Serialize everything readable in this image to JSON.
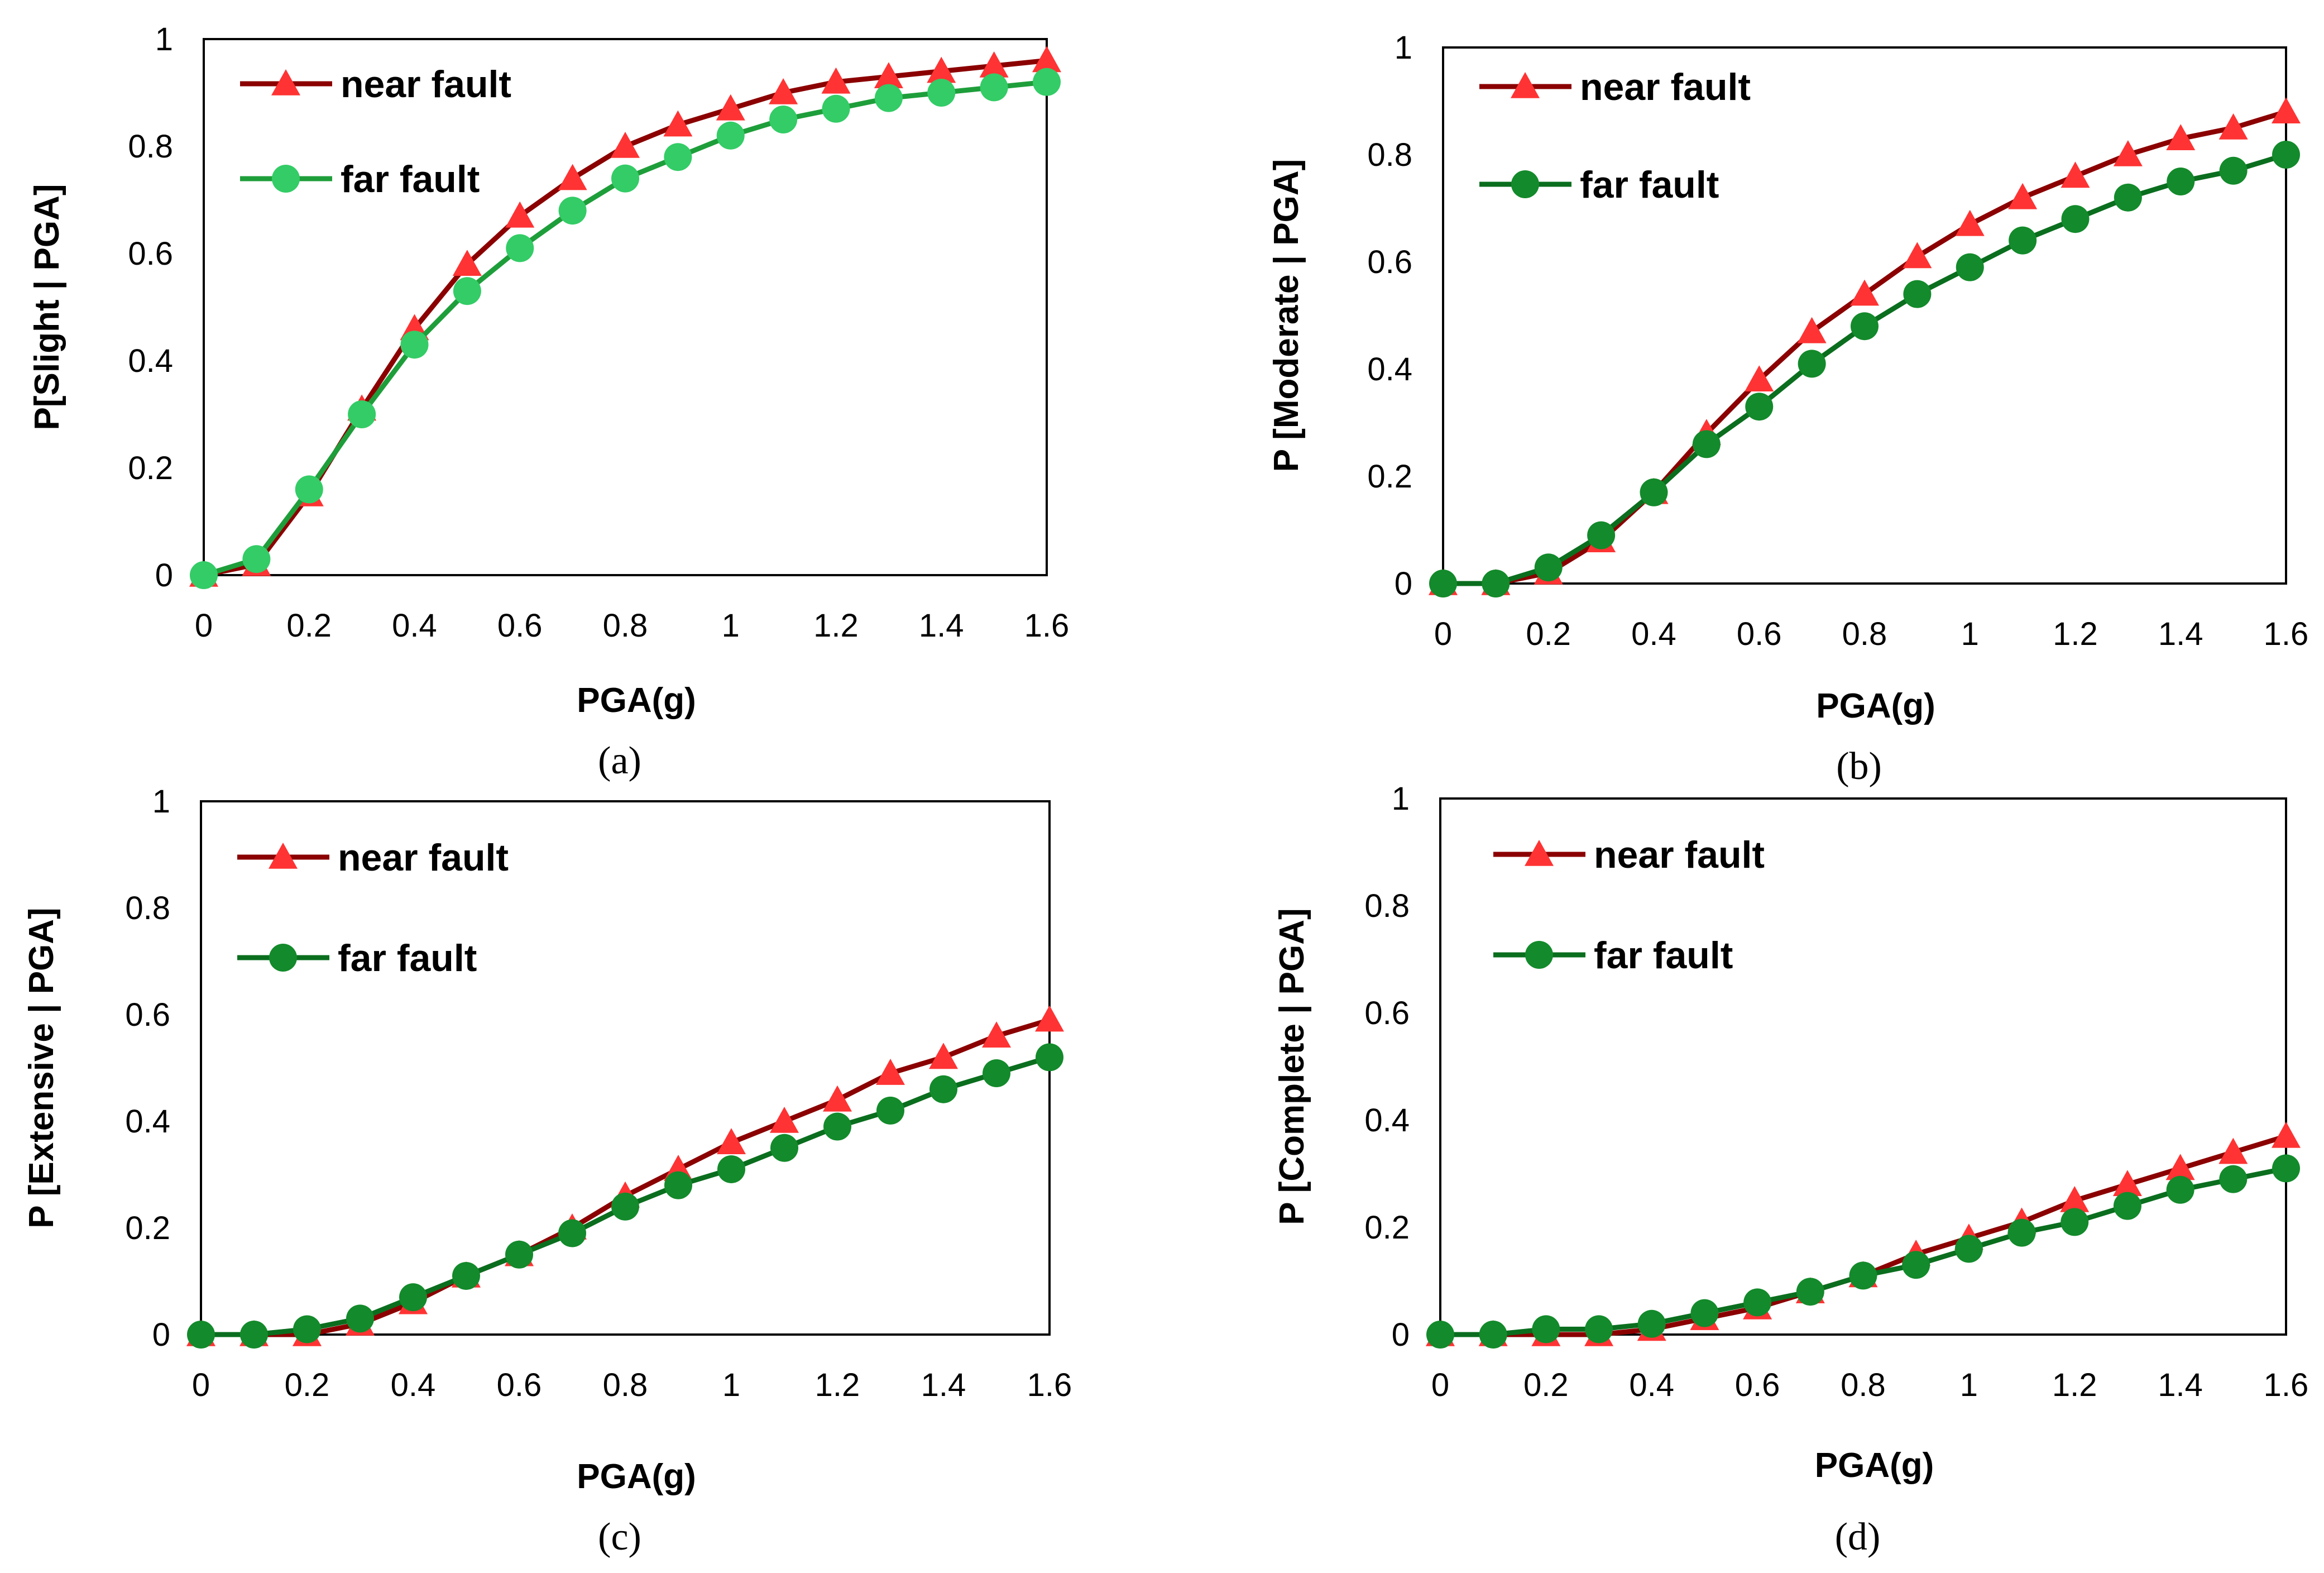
{
  "chart_data": [
    {
      "type": "line",
      "caption": "(a)",
      "xlabel": "PGA(g)",
      "ylabel": "P[Slight | PGA]",
      "xlim": [
        0,
        1.6
      ],
      "ylim": [
        0,
        1
      ],
      "xticks": [
        "0",
        "0.2",
        "0.4",
        "0.6",
        "0.8",
        "1",
        "1.2",
        "1.4",
        "1.6"
      ],
      "yticks": [
        "0",
        "0.2",
        "0.4",
        "0.6",
        "0.8",
        "1"
      ],
      "legend": "top-left",
      "x": [
        0,
        0.1,
        0.2,
        0.3,
        0.4,
        0.5,
        0.6,
        0.7,
        0.8,
        0.9,
        1.0,
        1.1,
        1.2,
        1.3,
        1.4,
        1.5,
        1.6
      ],
      "series": [
        {
          "name": "near fault",
          "marker": "triangle",
          "line_color": "#8b0000",
          "marker_color": "#ff3333",
          "values": [
            0.0,
            0.02,
            0.15,
            0.31,
            0.46,
            0.58,
            0.67,
            0.74,
            0.8,
            0.84,
            0.87,
            0.9,
            0.92,
            0.93,
            0.94,
            0.95,
            0.96
          ]
        },
        {
          "name": "far fault",
          "marker": "circle",
          "line_color": "#1e9e3a",
          "marker_color": "#33cc66",
          "values": [
            0.0,
            0.03,
            0.16,
            0.3,
            0.43,
            0.53,
            0.61,
            0.68,
            0.74,
            0.78,
            0.82,
            0.85,
            0.87,
            0.89,
            0.9,
            0.91,
            0.92
          ]
        }
      ]
    },
    {
      "type": "line",
      "caption": "(b)",
      "xlabel": "PGA(g)",
      "ylabel": "P [Moderate | PGA]",
      "xlim": [
        0,
        1.6
      ],
      "ylim": [
        0,
        1
      ],
      "xticks": [
        "0",
        "0.2",
        "0.4",
        "0.6",
        "0.8",
        "1",
        "1.2",
        "1.4",
        "1.6"
      ],
      "yticks": [
        "0",
        "0.2",
        "0.4",
        "0.6",
        "0.8",
        "1"
      ],
      "legend": "top-left",
      "x": [
        0,
        0.1,
        0.2,
        0.3,
        0.4,
        0.5,
        0.6,
        0.7,
        0.8,
        0.9,
        1.0,
        1.1,
        1.2,
        1.3,
        1.4,
        1.5,
        1.6
      ],
      "series": [
        {
          "name": "near fault",
          "marker": "triangle",
          "line_color": "#8b0000",
          "marker_color": "#ff3333",
          "values": [
            0.0,
            0.0,
            0.02,
            0.08,
            0.17,
            0.28,
            0.38,
            0.47,
            0.54,
            0.61,
            0.67,
            0.72,
            0.76,
            0.8,
            0.83,
            0.85,
            0.88
          ]
        },
        {
          "name": "far fault",
          "marker": "circle",
          "line_color": "#0a6e1e",
          "marker_color": "#138a2b",
          "values": [
            0.0,
            0.0,
            0.03,
            0.09,
            0.17,
            0.26,
            0.33,
            0.41,
            0.48,
            0.54,
            0.59,
            0.64,
            0.68,
            0.72,
            0.75,
            0.77,
            0.8
          ]
        }
      ]
    },
    {
      "type": "line",
      "caption": "(c)",
      "xlabel": "PGA(g)",
      "ylabel": "P [Extensive | PGA]",
      "xlim": [
        0,
        1.6
      ],
      "ylim": [
        0,
        1
      ],
      "xticks": [
        "0",
        "0.2",
        "0.4",
        "0.6",
        "0.8",
        "1",
        "1.2",
        "1.4",
        "1.6"
      ],
      "yticks": [
        "0",
        "0.2",
        "0.4",
        "0.6",
        "0.8",
        "1"
      ],
      "legend": "top-left",
      "x": [
        0,
        0.1,
        0.2,
        0.3,
        0.4,
        0.5,
        0.6,
        0.7,
        0.8,
        0.9,
        1.0,
        1.1,
        1.2,
        1.3,
        1.4,
        1.5,
        1.6
      ],
      "series": [
        {
          "name": "near fault",
          "marker": "triangle",
          "line_color": "#8b0000",
          "marker_color": "#ff3333",
          "values": [
            0.0,
            0.0,
            0.0,
            0.02,
            0.06,
            0.11,
            0.15,
            0.2,
            0.26,
            0.31,
            0.36,
            0.4,
            0.44,
            0.49,
            0.52,
            0.56,
            0.59
          ]
        },
        {
          "name": "far fault",
          "marker": "circle",
          "line_color": "#0a6e1e",
          "marker_color": "#138a2b",
          "values": [
            0.0,
            0.0,
            0.01,
            0.03,
            0.07,
            0.11,
            0.15,
            0.19,
            0.24,
            0.28,
            0.31,
            0.35,
            0.39,
            0.42,
            0.46,
            0.49,
            0.52
          ]
        }
      ]
    },
    {
      "type": "line",
      "caption": "(d)",
      "xlabel": "PGA(g)",
      "ylabel": "P [Complete | PGA]",
      "xlim": [
        0,
        1.6
      ],
      "ylim": [
        0,
        1
      ],
      "xticks": [
        "0",
        "0.2",
        "0.4",
        "0.6",
        "0.8",
        "1",
        "1.2",
        "1.4",
        "1.6"
      ],
      "yticks": [
        "0",
        "0.2",
        "0.4",
        "0.6",
        "0.8",
        "1"
      ],
      "legend": "top-left",
      "x": [
        0,
        0.1,
        0.2,
        0.3,
        0.4,
        0.5,
        0.6,
        0.7,
        0.8,
        0.9,
        1.0,
        1.1,
        1.2,
        1.3,
        1.4,
        1.5,
        1.6
      ],
      "series": [
        {
          "name": "near fault",
          "marker": "triangle",
          "line_color": "#8b0000",
          "marker_color": "#ff3333",
          "values": [
            0.0,
            0.0,
            0.0,
            0.0,
            0.01,
            0.03,
            0.05,
            0.08,
            0.11,
            0.15,
            0.18,
            0.21,
            0.25,
            0.28,
            0.31,
            0.34,
            0.37
          ]
        },
        {
          "name": "far fault",
          "marker": "circle",
          "line_color": "#0a6e1e",
          "marker_color": "#138a2b",
          "values": [
            0.0,
            0.0,
            0.01,
            0.01,
            0.02,
            0.04,
            0.06,
            0.08,
            0.11,
            0.13,
            0.16,
            0.19,
            0.21,
            0.24,
            0.27,
            0.29,
            0.31
          ]
        }
      ]
    }
  ]
}
